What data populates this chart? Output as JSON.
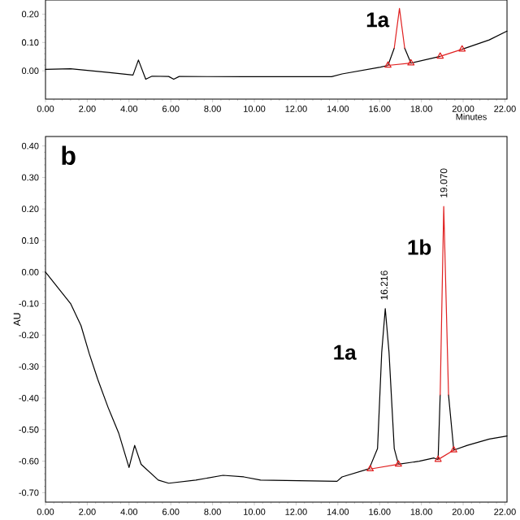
{
  "chart_data": [
    {
      "type": "line",
      "xlabel": "Minutes",
      "xlim": [
        0,
        22.1
      ],
      "ylim": [
        -0.1,
        0.25
      ],
      "xticks": [
        {
          "value": 0,
          "label": "0.00"
        },
        {
          "value": 2,
          "label": "2.00"
        },
        {
          "value": 4,
          "label": "4.00"
        },
        {
          "value": 6,
          "label": "6.00"
        },
        {
          "value": 8,
          "label": "8.00"
        },
        {
          "value": 10,
          "label": "10.00"
        },
        {
          "value": 12,
          "label": "12.00"
        },
        {
          "value": 14,
          "label": "14.00"
        },
        {
          "value": 16,
          "label": "16.00"
        },
        {
          "value": 18,
          "label": "18.00"
        },
        {
          "value": 20,
          "label": "20.00"
        },
        {
          "value": 22,
          "label": "22.00"
        }
      ],
      "yticks": [
        {
          "value": 0,
          "label": "0.00"
        },
        {
          "value": 0.1,
          "label": "0.10"
        },
        {
          "value": 0.2,
          "label": "0.20"
        }
      ],
      "series": [
        {
          "color": "#000000",
          "marker": "none",
          "x": [
            0,
            1.2,
            3.0,
            4.19,
            4.45,
            4.8,
            5.1,
            5.9,
            6.14,
            6.4,
            9.5,
            13.7,
            14.2,
            16.04,
            16.4,
            16.7,
            16.95,
            17.2,
            17.5,
            18.9,
            19.2,
            19.4,
            19.55,
            19.95,
            21.25,
            22.1
          ],
          "values": [
            0.005,
            0.007,
            -0.006,
            -0.015,
            0.038,
            -0.03,
            -0.019,
            -0.02,
            -0.03,
            -0.02,
            -0.021,
            -0.021,
            -0.011,
            0.013,
            0.019,
            0.08,
            null,
            0.08,
            0.027,
            0.051,
            null,
            null,
            null,
            0.076,
            0.109,
            0.14
          ]
        },
        {
          "color": "#e02020",
          "marker": "none",
          "x": [
            16.7,
            16.95,
            17.2
          ],
          "values": [
            0.08,
            0.22,
            0.08
          ]
        },
        {
          "color": "#e02020",
          "marker": "triangle",
          "x": [
            16.4,
            17.5
          ],
          "values": [
            0.019,
            0.027
          ]
        },
        {
          "color": "#e02020",
          "marker": "triangle",
          "x": [
            18.9,
            19.95
          ],
          "values": [
            0.051,
            0.076
          ]
        }
      ],
      "annotations": [
        {
          "text": "1a",
          "x": 16.95,
          "y": 0.22
        }
      ]
    },
    {
      "type": "line",
      "title": "b",
      "ylabel": "AU",
      "xlim": [
        0,
        22.1
      ],
      "ylim": [
        -0.73,
        0.43
      ],
      "xticks": [
        {
          "value": 0,
          "label": "0.00"
        },
        {
          "value": 2,
          "label": "2.00"
        },
        {
          "value": 4,
          "label": "4.00"
        },
        {
          "value": 6,
          "label": "6.00"
        },
        {
          "value": 8,
          "label": "8.00"
        },
        {
          "value": 10,
          "label": "10.00"
        },
        {
          "value": 12,
          "label": "12.00"
        },
        {
          "value": 14,
          "label": "14.00"
        },
        {
          "value": 16,
          "label": "16.00"
        },
        {
          "value": 18,
          "label": "18.00"
        },
        {
          "value": 20,
          "label": "20.00"
        },
        {
          "value": 22,
          "label": "22.00"
        }
      ],
      "yticks": [
        {
          "value": -0.7,
          "label": "-0.70"
        },
        {
          "value": -0.6,
          "label": "-0.60"
        },
        {
          "value": -0.5,
          "label": "-0.50"
        },
        {
          "value": -0.4,
          "label": "-0.40"
        },
        {
          "value": -0.3,
          "label": "-0.30"
        },
        {
          "value": -0.2,
          "label": "-0.20"
        },
        {
          "value": -0.1,
          "label": "-0.10"
        },
        {
          "value": 0,
          "label": "0.00"
        },
        {
          "value": 0.1,
          "label": "0.10"
        },
        {
          "value": 0.2,
          "label": "0.20"
        },
        {
          "value": 0.3,
          "label": "0.30"
        },
        {
          "value": 0.4,
          "label": "0.40"
        }
      ],
      "series": [
        {
          "color": "#000000",
          "marker": "none",
          "x": [
            0,
            1.2,
            1.7,
            2.1,
            2.5,
            3.0,
            3.5,
            4.0,
            4.27,
            4.58,
            5.4,
            5.9,
            7.2,
            8.5,
            9.5,
            10.3,
            13.96,
            14.2,
            15.5,
            15.9,
            16.1,
            16.27,
            16.45,
            16.7,
            16.9,
            17.9,
            18.6,
            18.8,
            18.9,
            19.07,
            19.3,
            19.55,
            20.2,
            21.25,
            22.1
          ],
          "values": [
            0,
            -0.1,
            -0.17,
            -0.26,
            -0.34,
            -0.43,
            -0.51,
            -0.62,
            -0.55,
            -0.61,
            -0.66,
            -0.67,
            -0.66,
            -0.645,
            -0.65,
            -0.66,
            -0.664,
            -0.65,
            -0.624,
            -0.56,
            -0.255,
            -0.116,
            -0.255,
            -0.56,
            -0.61,
            -0.6,
            -0.59,
            -0.595,
            -0.39,
            null,
            -0.39,
            -0.565,
            -0.55,
            -0.53,
            -0.52
          ]
        },
        {
          "color": "#e02020",
          "marker": "none",
          "x": [
            18.9,
            19.07,
            19.3
          ],
          "values": [
            -0.39,
            0.208,
            -0.39
          ]
        },
        {
          "color": "#e02020",
          "marker": "triangle",
          "x": [
            15.55,
            16.9
          ],
          "values": [
            -0.625,
            -0.61
          ]
        },
        {
          "color": "#e02020",
          "marker": "triangle",
          "x": [
            18.8,
            19.55
          ],
          "values": [
            -0.595,
            -0.565
          ]
        }
      ],
      "annotations": [
        {
          "text": "1a",
          "x": 16.27,
          "y": -0.116
        },
        {
          "text": "1b",
          "x": 19.07,
          "y": 0.208
        },
        {
          "text": "16.216",
          "x": 16.216,
          "y": -0.116
        },
        {
          "text": "19.070",
          "x": 19.07,
          "y": 0.208
        }
      ]
    }
  ]
}
